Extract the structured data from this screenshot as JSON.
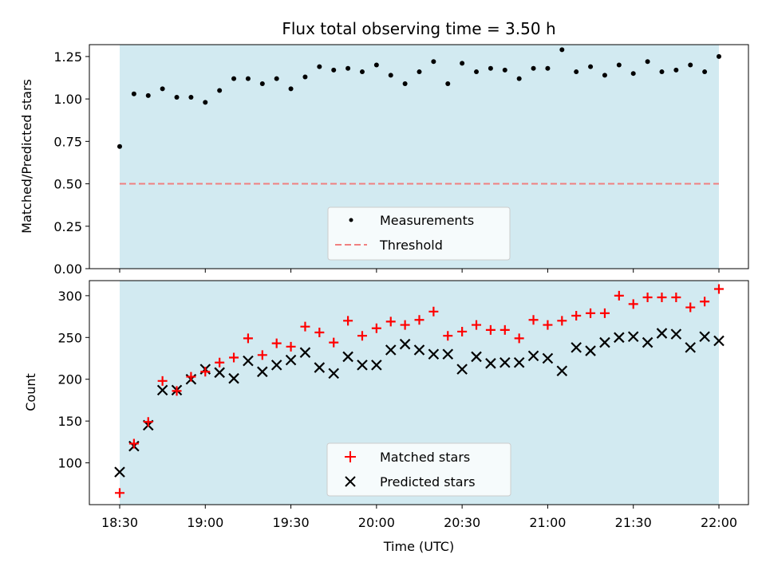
{
  "chart_data": [
    {
      "type": "scatter",
      "title": "Flux total observing time = 3.50 h",
      "xlabel": "",
      "ylabel": "Matched/Predicted stars",
      "ylim": [
        0,
        1.32
      ],
      "yticks": [
        "0.00",
        "0.25",
        "0.50",
        "0.75",
        "1.00",
        "1.25"
      ],
      "shade_range": [
        "18:30",
        "22:00"
      ],
      "shade_color": "#add8e6",
      "legend_position": "lower-center",
      "legend": [
        "Measurements",
        "Threshold"
      ],
      "threshold": 0.5,
      "threshold_color": "#f08080",
      "x": [
        "18:30",
        "18:35",
        "18:40",
        "18:45",
        "18:50",
        "18:55",
        "19:00",
        "19:05",
        "19:10",
        "19:15",
        "19:20",
        "19:25",
        "19:30",
        "19:35",
        "19:40",
        "19:45",
        "19:50",
        "19:55",
        "20:00",
        "20:05",
        "20:10",
        "20:15",
        "20:20",
        "20:25",
        "20:30",
        "20:35",
        "20:40",
        "20:45",
        "20:50",
        "20:55",
        "21:00",
        "21:05",
        "21:10",
        "21:15",
        "21:20",
        "21:25",
        "21:30",
        "21:35",
        "21:40",
        "21:45",
        "21:50",
        "21:55",
        "22:00"
      ],
      "series": [
        {
          "name": "Measurements",
          "color": "#000000",
          "values": [
            0.72,
            1.03,
            1.02,
            1.06,
            1.01,
            1.01,
            0.98,
            1.05,
            1.12,
            1.12,
            1.09,
            1.12,
            1.06,
            1.13,
            1.19,
            1.17,
            1.18,
            1.16,
            1.2,
            1.14,
            1.09,
            1.16,
            1.22,
            1.09,
            1.21,
            1.16,
            1.18,
            1.17,
            1.12,
            1.18,
            1.18,
            1.29,
            1.16,
            1.19,
            1.14,
            1.2,
            1.15,
            1.22,
            1.16,
            1.17,
            1.2,
            1.16,
            1.25
          ]
        }
      ]
    },
    {
      "type": "scatter",
      "title": "",
      "xlabel": "Time (UTC)",
      "ylabel": "Count",
      "ylim": [
        50,
        318
      ],
      "yticks": [
        "100",
        "150",
        "200",
        "250",
        "300"
      ],
      "xticks": [
        "18:30",
        "19:00",
        "19:30",
        "20:00",
        "20:30",
        "21:00",
        "21:30",
        "22:00"
      ],
      "shade_range": [
        "18:30",
        "22:00"
      ],
      "shade_color": "#add8e6",
      "legend_position": "lower-center",
      "legend": [
        "Matched stars",
        "Predicted stars"
      ],
      "x": [
        "18:30",
        "18:35",
        "18:40",
        "18:45",
        "18:50",
        "18:55",
        "19:00",
        "19:05",
        "19:10",
        "19:15",
        "19:20",
        "19:25",
        "19:30",
        "19:35",
        "19:40",
        "19:45",
        "19:50",
        "19:55",
        "20:00",
        "20:05",
        "20:10",
        "20:15",
        "20:20",
        "20:25",
        "20:30",
        "20:35",
        "20:40",
        "20:45",
        "20:50",
        "20:55",
        "21:00",
        "21:05",
        "21:10",
        "21:15",
        "21:20",
        "21:25",
        "21:30",
        "21:35",
        "21:40",
        "21:45",
        "21:50",
        "21:55",
        "22:00"
      ],
      "series": [
        {
          "name": "Matched stars",
          "marker": "plus",
          "color": "#ff0000",
          "values": [
            64,
            123,
            149,
            198,
            186,
            203,
            209,
            220,
            226,
            249,
            229,
            243,
            239,
            263,
            256,
            244,
            270,
            252,
            261,
            269,
            265,
            271,
            281,
            252,
            257,
            265,
            259,
            259,
            249,
            271,
            265,
            270,
            276,
            279,
            279,
            300,
            290,
            298,
            298,
            298,
            286,
            293,
            308
          ]
        },
        {
          "name": "Predicted stars",
          "marker": "x",
          "color": "#000000",
          "values": [
            89,
            120,
            145,
            187,
            187,
            200,
            212,
            208,
            201,
            222,
            209,
            217,
            223,
            232,
            214,
            207,
            227,
            217,
            217,
            235,
            242,
            235,
            230,
            230,
            212,
            227,
            219,
            220,
            220,
            228,
            225,
            210,
            238,
            234,
            244,
            250,
            251,
            244,
            255,
            254,
            238,
            251,
            246
          ]
        }
      ]
    }
  ]
}
